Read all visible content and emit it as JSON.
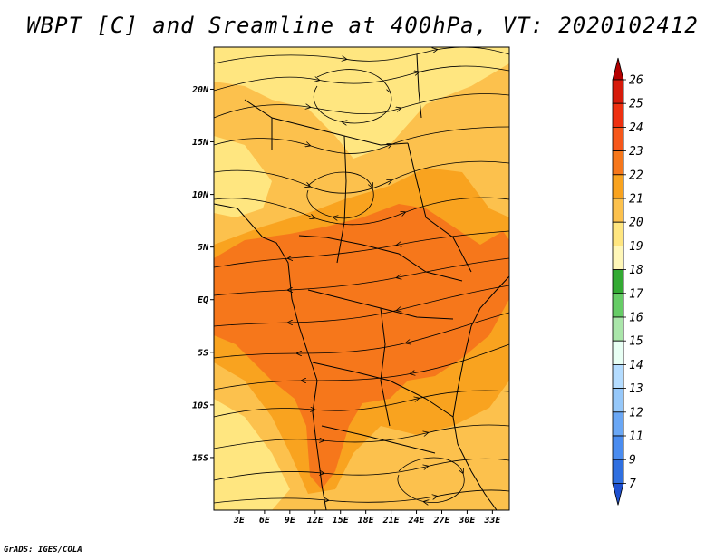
{
  "title": "WBPT [C] and Sreamline at 400hPa, VT: 2020102412",
  "credit": "GrADS: IGES/COLA",
  "map": {
    "lon_range": [
      0,
      35
    ],
    "lat_range": [
      -20,
      24
    ],
    "lon_ticks": [
      "3E",
      "6E",
      "9E",
      "12E",
      "15E",
      "18E",
      "21E",
      "24E",
      "27E",
      "30E",
      "33E"
    ],
    "lon_tick_values": [
      3,
      6,
      9,
      12,
      15,
      18,
      21,
      24,
      27,
      30,
      33
    ],
    "lat_ticks": [
      "20N",
      "15N",
      "10N",
      "5N",
      "EQ",
      "5S",
      "10S",
      "15S"
    ],
    "lat_tick_values": [
      20,
      15,
      10,
      5,
      0,
      -5,
      -10,
      -15
    ],
    "field": "Wet-bulb potential temperature at 400hPa",
    "dominant_range_c": [
      19,
      23
    ],
    "colors": {
      "c19_20": "#ffe680",
      "c20_21": "#fcc14d",
      "c21_22": "#f9a31f",
      "c22_23": "#f6771b"
    }
  },
  "colorbar": {
    "labels": [
      "26",
      "25",
      "24",
      "23",
      "22",
      "21",
      "20",
      "19",
      "18",
      "17",
      "16",
      "15",
      "14",
      "13",
      "12",
      "11",
      "9",
      "7"
    ],
    "colors": [
      "#b40000",
      "#d61a0a",
      "#ee3010",
      "#f6571a",
      "#f6771b",
      "#f9a31f",
      "#fcc14d",
      "#ffe680",
      "#fff7b8",
      "#33aa33",
      "#66cc66",
      "#aae6aa",
      "#e8fff4",
      "#b4dcff",
      "#96c8fa",
      "#6aa7f5",
      "#4a8cf0",
      "#2f6fe0",
      "#1e50d0"
    ]
  }
}
